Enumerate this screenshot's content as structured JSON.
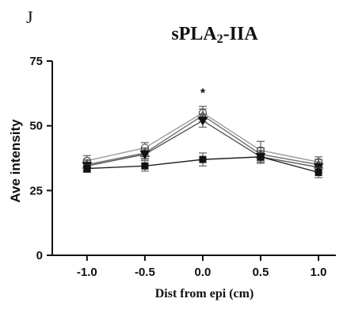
{
  "panel_label": "J",
  "chart_data": {
    "type": "line",
    "title_main": "sPLA",
    "title_sub": "2",
    "title_rest": "-IIA",
    "xlabel": "Dist from epi (cm)",
    "ylabel": "Ave intensity",
    "x": [
      -1.0,
      -0.5,
      0.0,
      0.5,
      1.0
    ],
    "x_tick_labels": [
      "-1.0",
      "-0.5",
      "0.0",
      "0.5",
      "1.0"
    ],
    "xlim": [
      -1.3,
      1.15
    ],
    "y_ticks": [
      0,
      25,
      50,
      75
    ],
    "y_tick_labels": [
      "0",
      "25",
      "50",
      "75"
    ],
    "ylim": [
      0,
      75
    ],
    "grid": false,
    "series": [
      {
        "marker": "circle",
        "values": [
          36.5,
          41.5,
          55,
          40.5,
          36
        ],
        "errors": [
          2,
          2,
          2.5,
          3.5,
          2
        ]
      },
      {
        "marker": "triangle",
        "values": [
          35,
          39.5,
          54,
          39,
          35
        ],
        "errors": [
          2,
          2,
          2.5,
          2.5,
          2
        ]
      },
      {
        "marker": "triangle-down",
        "values": [
          34.5,
          39,
          52,
          38,
          34
        ],
        "errors": [
          2,
          2,
          2.5,
          2.5,
          2
        ]
      },
      {
        "marker": "square",
        "values": [
          33.5,
          34.5,
          37,
          38,
          32
        ],
        "errors": [
          1.5,
          2,
          2.5,
          2,
          2
        ]
      }
    ],
    "annotations": [
      {
        "text": "*",
        "x": 0.0,
        "y": 63.5
      }
    ]
  }
}
